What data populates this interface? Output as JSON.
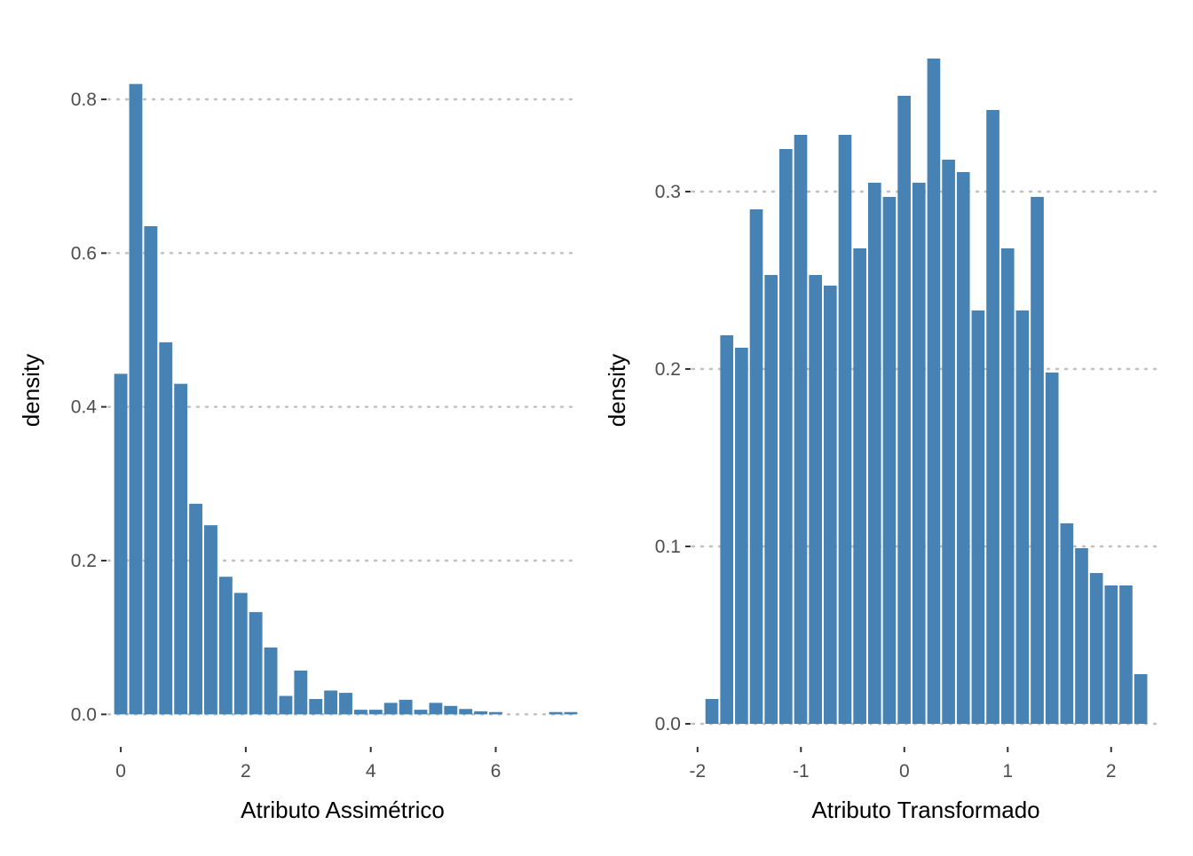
{
  "chart_data": [
    {
      "type": "bar",
      "xlabel": "Atributo Assimétrico",
      "ylabel": "density",
      "xlim": [
        -0.2,
        7.3
      ],
      "ylim": [
        -0.04,
        0.86
      ],
      "x_ticks": [
        0,
        2,
        4,
        6
      ],
      "x_tick_labels": [
        "0",
        "2",
        "4",
        "6"
      ],
      "y_ticks": [
        0.0,
        0.2,
        0.4,
        0.6,
        0.8
      ],
      "y_tick_labels": [
        "0.0",
        "0.2",
        "0.4",
        "0.6",
        "0.8"
      ],
      "grid": "horizontal-dotted",
      "bin_width": 0.24,
      "bins_start": -0.12,
      "bar_color": "#4682B4",
      "values": [
        0.443,
        0.82,
        0.635,
        0.484,
        0.43,
        0.274,
        0.246,
        0.179,
        0.158,
        0.133,
        0.087,
        0.024,
        0.057,
        0.02,
        0.031,
        0.028,
        0.006,
        0.006,
        0.015,
        0.019,
        0.006,
        0.015,
        0.011,
        0.007,
        0.004,
        0.003,
        0.0,
        0.0,
        0.0,
        0.003,
        0.003
      ]
    },
    {
      "type": "bar",
      "xlabel": "Atributo Transformado",
      "ylabel": "density",
      "xlim": [
        -2.05,
        2.5
      ],
      "ylim": [
        -0.012,
        0.378
      ],
      "x_ticks": [
        -2,
        -1,
        0,
        1,
        2
      ],
      "x_tick_labels": [
        "-2",
        "-1",
        "0",
        "1",
        "2"
      ],
      "y_ticks": [
        0.0,
        0.1,
        0.2,
        0.3
      ],
      "y_tick_labels": [
        "0.0",
        "0.1",
        "0.2",
        "0.3"
      ],
      "grid": "horizontal-dotted",
      "bin_width": 0.143,
      "bins_start": -1.932,
      "bar_color": "#4682B4",
      "values": [
        0.014,
        0.219,
        0.212,
        0.29,
        0.253,
        0.324,
        0.332,
        0.253,
        0.247,
        0.332,
        0.268,
        0.305,
        0.297,
        0.354,
        0.305,
        0.375,
        0.318,
        0.311,
        0.233,
        0.346,
        0.268,
        0.233,
        0.297,
        0.198,
        0.113,
        0.099,
        0.085,
        0.078,
        0.078,
        0.028
      ]
    }
  ]
}
